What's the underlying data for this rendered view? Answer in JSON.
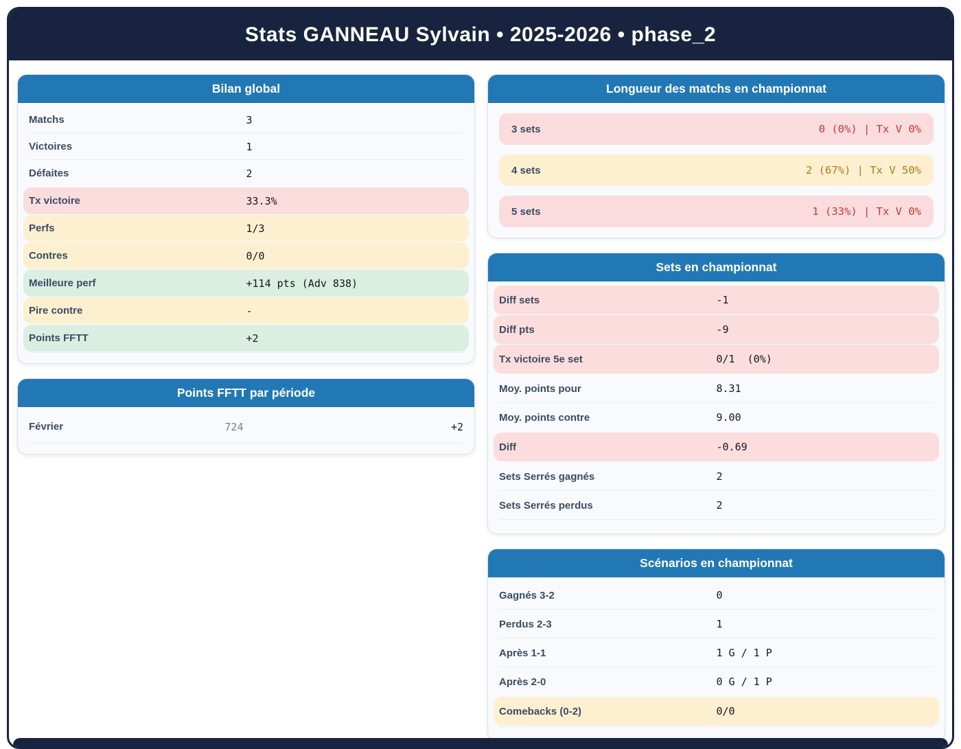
{
  "header": {
    "title": "Stats GANNEAU Sylvain • 2025-2026 • phase_2"
  },
  "colors": {
    "navy": "#18243f",
    "card_header_blue": "#2278b4",
    "pink_bg": "#fbdddd",
    "yellow_bg": "#fdf0d1",
    "green_bg": "#daeee2",
    "red_text": "#c23a3a",
    "gold_text": "#b07918"
  },
  "cards": {
    "bilan": {
      "title": "Bilan global",
      "rows": [
        {
          "label": "Matchs",
          "value": "3",
          "variant": "plain"
        },
        {
          "label": "Victoires",
          "value": "1",
          "variant": "plain"
        },
        {
          "label": "Défaites",
          "value": "2",
          "variant": "plain"
        },
        {
          "label": "Tx victoire",
          "value": "33.3%",
          "variant": "pink"
        },
        {
          "label": "Perfs",
          "value": "1/3",
          "variant": "yellow"
        },
        {
          "label": "Contres",
          "value": "0/0",
          "variant": "yellow"
        },
        {
          "label": "Meilleure perf",
          "value": "+114 pts (Adv 838)",
          "variant": "green"
        },
        {
          "label": "Pire contre",
          "value": "-",
          "variant": "yellow"
        },
        {
          "label": "Points FFTT",
          "value": "+2",
          "variant": "green"
        }
      ]
    },
    "points_fftt": {
      "title": "Points FFTT par période",
      "rows": [
        {
          "label": "Février",
          "rating": "724",
          "delta": "+2"
        }
      ]
    },
    "longueur": {
      "title": "Longueur des matchs en championnat",
      "rows": [
        {
          "label": "3 sets",
          "value": "0 (0%) | Tx V 0%",
          "variant": "pink"
        },
        {
          "label": "4 sets",
          "value": "2 (67%) | Tx V 50%",
          "variant": "yellow"
        },
        {
          "label": "5 sets",
          "value": "1 (33%) | Tx V 0%",
          "variant": "pink"
        }
      ]
    },
    "sets": {
      "title": "Sets en championnat",
      "rows": [
        {
          "label": "Diff sets",
          "value": "-1",
          "variant": "pink"
        },
        {
          "label": "Diff pts",
          "value": "-9",
          "variant": "pink"
        },
        {
          "label": "Tx victoire 5e set",
          "value": "0/1  (0%)",
          "variant": "pink"
        },
        {
          "label": "Moy. points pour",
          "value": "8.31",
          "variant": "plain"
        },
        {
          "label": "Moy. points contre",
          "value": "9.00",
          "variant": "plain"
        },
        {
          "label": "Diff",
          "value": "-0.69",
          "variant": "pink"
        },
        {
          "label": "Sets Serrés gagnés",
          "value": "2",
          "variant": "plain"
        },
        {
          "label": "Sets Serrés perdus",
          "value": "2",
          "variant": "plain"
        }
      ]
    },
    "scenarios": {
      "title": "Scénarios en championnat",
      "rows": [
        {
          "label": "Gagnés 3-2",
          "value": "0",
          "variant": "plain"
        },
        {
          "label": "Perdus 2-3",
          "value": "1",
          "variant": "plain"
        },
        {
          "label": "Après 1-1",
          "value": "1 G / 1 P",
          "variant": "plain"
        },
        {
          "label": "Après 2-0",
          "value": "0 G / 1 P",
          "variant": "plain"
        },
        {
          "label": "Comebacks (0-2)",
          "value": "0/0",
          "variant": "yellow"
        }
      ]
    }
  }
}
